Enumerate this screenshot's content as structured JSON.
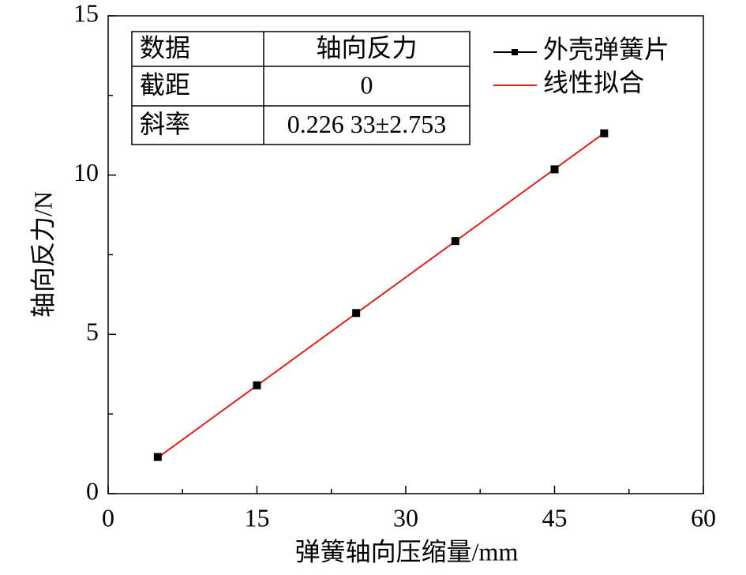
{
  "chart_data": {
    "type": "scatter",
    "xlabel": "弹簧轴向压缩量/mm",
    "ylabel": "轴向反力/N",
    "xlim": [
      0,
      60
    ],
    "xticks": [
      0,
      15,
      30,
      45,
      60
    ],
    "xminorticks": [
      7.5,
      22.5,
      37.5,
      52.5
    ],
    "ylim": [
      0,
      15
    ],
    "yticks": [
      0,
      5,
      10,
      15
    ],
    "yminorticks": [
      2.5,
      7.5,
      12.5
    ],
    "series": [
      {
        "name": "外壳弹簧片",
        "color": "#000000",
        "x": [
          5,
          15,
          25,
          35,
          45,
          50
        ],
        "values": [
          1.15,
          3.4,
          5.67,
          7.93,
          10.18,
          11.31
        ]
      },
      {
        "name": "线性拟合",
        "color": "#e0201b",
        "x": [
          5,
          50
        ],
        "values": [
          1.13,
          11.32
        ]
      }
    ],
    "table": {
      "rows": [
        [
          "数据",
          "轴向反力"
        ],
        [
          "截距",
          "0"
        ],
        [
          "斜率",
          "0.226 33±2.753"
        ]
      ]
    }
  }
}
